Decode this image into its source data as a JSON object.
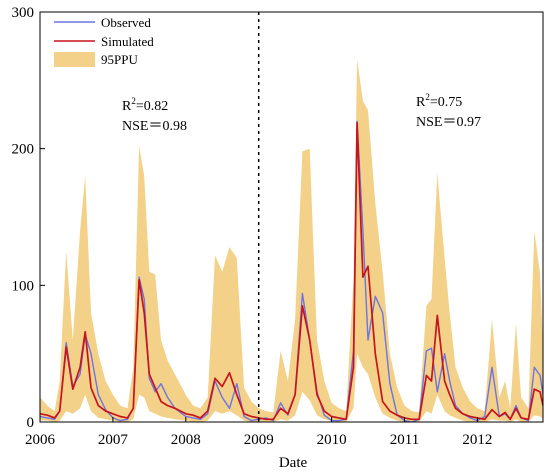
{
  "colors": {
    "observed": "#6f74e0",
    "simulated": "#c8141c",
    "band": "#f3d188",
    "divider": "#000000"
  },
  "chart_data": {
    "type": "line",
    "xlabel": "Date",
    "ylabel": "",
    "xlim": [
      2006,
      2012.9
    ],
    "ylim": [
      0,
      300
    ],
    "x_ticks": [
      2006,
      2007,
      2008,
      2009,
      2010,
      2011,
      2012
    ],
    "x_tick_labels": [
      "2006",
      "2007",
      "2008",
      "2009",
      "2010",
      "2011",
      "2012"
    ],
    "y_ticks": [
      0,
      100,
      200,
      300
    ],
    "y_tick_labels": [
      "0",
      "100",
      "200",
      "300"
    ],
    "legend_position": "top-left",
    "divider_x": 2009.0,
    "series": [
      {
        "name": "Observed",
        "kind": "line",
        "x": [
          2006.0,
          2006.1,
          2006.2,
          2006.27,
          2006.36,
          2006.45,
          2006.55,
          2006.62,
          2006.7,
          2006.8,
          2006.9,
          2007.0,
          2007.1,
          2007.2,
          2007.28,
          2007.36,
          2007.43,
          2007.5,
          2007.58,
          2007.66,
          2007.75,
          2007.85,
          2008.0,
          2008.1,
          2008.2,
          2008.3,
          2008.4,
          2008.5,
          2008.6,
          2008.7,
          2008.8,
          2008.9,
          2009.0,
          2009.1,
          2009.2,
          2009.3,
          2009.4,
          2009.5,
          2009.6,
          2009.7,
          2009.8,
          2009.9,
          2010.0,
          2010.1,
          2010.2,
          2010.3,
          2010.35,
          2010.43,
          2010.5,
          2010.6,
          2010.7,
          2010.8,
          2010.9,
          2011.0,
          2011.1,
          2011.2,
          2011.3,
          2011.37,
          2011.45,
          2011.55,
          2011.62,
          2011.7,
          2011.8,
          2011.9,
          2012.0,
          2012.1,
          2012.2,
          2012.3,
          2012.38,
          2012.45,
          2012.53,
          2012.6,
          2012.7,
          2012.78,
          2012.86,
          2012.9
        ],
        "y": [
          4,
          3,
          2,
          8,
          58,
          26,
          35,
          64,
          50,
          20,
          9,
          3,
          1,
          2,
          10,
          106,
          90,
          32,
          22,
          28,
          18,
          10,
          4,
          3,
          2,
          6,
          30,
          18,
          10,
          28,
          4,
          1,
          2,
          3,
          1,
          14,
          5,
          20,
          94,
          60,
          22,
          5,
          1,
          1,
          2,
          52,
          220,
          140,
          60,
          92,
          80,
          28,
          5,
          1,
          0,
          2,
          52,
          54,
          22,
          50,
          30,
          12,
          6,
          3,
          1,
          4,
          40,
          4,
          6,
          2,
          12,
          3,
          1,
          40,
          34,
          20
        ]
      },
      {
        "name": "Simulated",
        "kind": "line",
        "x": [
          2006.0,
          2006.1,
          2006.2,
          2006.27,
          2006.36,
          2006.45,
          2006.55,
          2006.62,
          2006.7,
          2006.8,
          2006.9,
          2007.0,
          2007.1,
          2007.2,
          2007.28,
          2007.36,
          2007.43,
          2007.5,
          2007.58,
          2007.66,
          2007.75,
          2007.85,
          2008.0,
          2008.1,
          2008.2,
          2008.3,
          2008.4,
          2008.5,
          2008.6,
          2008.7,
          2008.8,
          2008.9,
          2009.0,
          2009.1,
          2009.2,
          2009.3,
          2009.4,
          2009.5,
          2009.6,
          2009.7,
          2009.8,
          2009.9,
          2010.0,
          2010.1,
          2010.2,
          2010.3,
          2010.35,
          2010.43,
          2010.5,
          2010.6,
          2010.7,
          2010.8,
          2010.9,
          2011.0,
          2011.1,
          2011.2,
          2011.3,
          2011.37,
          2011.45,
          2011.55,
          2011.62,
          2011.7,
          2011.8,
          2011.9,
          2012.0,
          2012.1,
          2012.2,
          2012.3,
          2012.38,
          2012.45,
          2012.53,
          2012.6,
          2012.7,
          2012.78,
          2012.86,
          2012.9
        ],
        "y": [
          6,
          5,
          3,
          8,
          55,
          24,
          40,
          66,
          25,
          12,
          8,
          6,
          4,
          3,
          10,
          104,
          80,
          35,
          25,
          15,
          12,
          10,
          6,
          5,
          3,
          8,
          32,
          26,
          36,
          20,
          6,
          4,
          3,
          2,
          2,
          10,
          6,
          20,
          85,
          60,
          20,
          8,
          4,
          3,
          2,
          40,
          219,
          106,
          114,
          50,
          15,
          8,
          5,
          3,
          2,
          2,
          34,
          30,
          78,
          30,
          20,
          10,
          6,
          4,
          3,
          2,
          9,
          4,
          7,
          2,
          10,
          3,
          2,
          24,
          22,
          12
        ]
      },
      {
        "name": "95PPU",
        "kind": "band",
        "x": [
          2006.0,
          2006.1,
          2006.2,
          2006.27,
          2006.36,
          2006.45,
          2006.55,
          2006.62,
          2006.7,
          2006.8,
          2006.9,
          2007.0,
          2007.1,
          2007.2,
          2007.28,
          2007.36,
          2007.43,
          2007.5,
          2007.58,
          2007.66,
          2007.75,
          2007.85,
          2008.0,
          2008.1,
          2008.2,
          2008.3,
          2008.4,
          2008.5,
          2008.6,
          2008.7,
          2008.8,
          2008.9,
          2009.0,
          2009.1,
          2009.2,
          2009.3,
          2009.4,
          2009.5,
          2009.6,
          2009.7,
          2009.8,
          2009.9,
          2010.0,
          2010.1,
          2010.2,
          2010.3,
          2010.35,
          2010.43,
          2010.5,
          2010.6,
          2010.7,
          2010.8,
          2010.9,
          2011.0,
          2011.1,
          2011.2,
          2011.3,
          2011.37,
          2011.45,
          2011.55,
          2011.62,
          2011.7,
          2011.8,
          2011.9,
          2012.0,
          2012.1,
          2012.2,
          2012.3,
          2012.38,
          2012.45,
          2012.53,
          2012.6,
          2012.7,
          2012.78,
          2012.86,
          2012.9
        ],
        "lower": [
          1,
          1,
          0,
          1,
          8,
          6,
          10,
          20,
          8,
          3,
          2,
          1,
          0,
          0,
          2,
          20,
          18,
          8,
          6,
          4,
          3,
          2,
          1,
          0,
          0,
          1,
          8,
          6,
          8,
          5,
          1,
          0,
          0,
          0,
          0,
          2,
          1,
          5,
          22,
          16,
          5,
          2,
          1,
          0,
          0,
          10,
          50,
          40,
          35,
          18,
          6,
          3,
          1,
          0,
          0,
          0,
          8,
          6,
          20,
          8,
          5,
          3,
          1,
          0,
          0,
          0,
          2,
          1,
          1,
          0,
          2,
          0,
          0,
          5,
          4,
          2
        ],
        "upper": [
          18,
          12,
          8,
          30,
          125,
          60,
          140,
          180,
          80,
          50,
          30,
          20,
          12,
          10,
          40,
          202,
          180,
          110,
          108,
          60,
          45,
          35,
          20,
          12,
          10,
          18,
          122,
          110,
          128,
          120,
          25,
          15,
          10,
          8,
          7,
          52,
          30,
          75,
          198,
          200,
          60,
          30,
          14,
          10,
          8,
          105,
          265,
          235,
          228,
          160,
          110,
          50,
          25,
          12,
          8,
          7,
          85,
          90,
          182,
          120,
          80,
          40,
          25,
          15,
          10,
          8,
          75,
          18,
          30,
          10,
          72,
          18,
          10,
          140,
          108,
          55
        ]
      }
    ],
    "legend": [
      "Observed",
      "Simulated",
      "95PPU"
    ],
    "annotations": [
      {
        "r2_prefix": "R",
        "r2_sup": "2",
        "r2_value": "=0.82",
        "nse": "NSE＝0.98"
      },
      {
        "r2_prefix": "R",
        "r2_sup": "2",
        "r2_value": "=0.75",
        "nse": "NSE＝0.97"
      }
    ]
  }
}
